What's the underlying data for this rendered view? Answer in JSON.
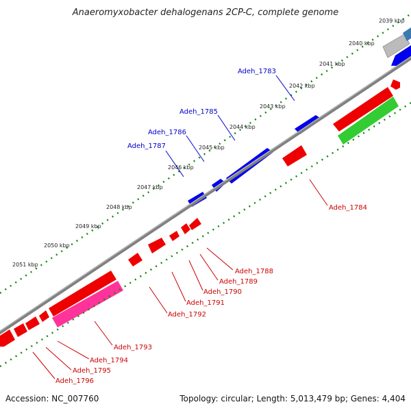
{
  "title": "Anaeromyxobacter dehalogenans 2CP-C, complete genome",
  "footer": {
    "accession": "Accession: NC_007760",
    "summary": "Topology: circular; Length: 5,013,479 bp; Genes: 4,404"
  },
  "ticks": [
    "2039 kbp",
    "2040 kbp",
    "2041 kbp",
    "2042 kbp",
    "2043 kbp",
    "2044 kbp",
    "2045 kbp",
    "2046 kbp",
    "2047 kbp",
    "2048 kbp",
    "2049 kbp",
    "2050 kbp",
    "2051 kbp"
  ],
  "genes_forward": [
    "Adeh_1783",
    "Adeh_1785",
    "Adeh_1786",
    "Adeh_1787"
  ],
  "genes_reverse": [
    "Adeh_1784",
    "Adeh_1788",
    "Adeh_1789",
    "Adeh_1790",
    "Adeh_1791",
    "Adeh_1792",
    "Adeh_1793",
    "Adeh_1794",
    "Adeh_1795",
    "Adeh_1796"
  ],
  "colors": {
    "forward_gene": "#0000ee",
    "reverse_gene": "#ee0000",
    "rRNA": "#33cc33",
    "misc_feature": "#ff3399",
    "gray_feature": "#bbbbbb",
    "steel_feature": "#3a7ab0",
    "backbone": "#808080",
    "ruler": "#118811"
  }
}
